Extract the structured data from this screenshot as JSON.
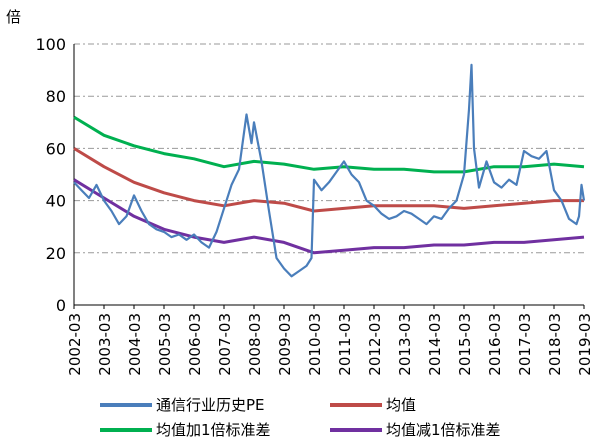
{
  "chart_data": {
    "type": "line",
    "unit_label": "倍",
    "x_tick_labels": [
      "2002-03",
      "2003-03",
      "2004-03",
      "2005-03",
      "2006-03",
      "2007-03",
      "2008-03",
      "2009-03",
      "2010-03",
      "2011-03",
      "2012-03",
      "2013-03",
      "2014-03",
      "2015-03",
      "2016-03",
      "2017-03",
      "2018-03",
      "2019-03"
    ],
    "xlim": [
      "2002-03",
      "2019-03"
    ],
    "ylim": [
      0,
      100
    ],
    "y_ticks": [
      "0",
      "20",
      "40",
      "60",
      "80",
      "100"
    ],
    "grid": "horizontal dash-dot",
    "legend_placement": "bottom",
    "series": [
      {
        "name": "通信行业历史PE",
        "color": "#4a7ebb",
        "points": [
          [
            "2002-03",
            47
          ],
          [
            "2002-06",
            44
          ],
          [
            "2002-09",
            41
          ],
          [
            "2002-12",
            46
          ],
          [
            "2003-03",
            40
          ],
          [
            "2003-06",
            36
          ],
          [
            "2003-09",
            31
          ],
          [
            "2003-12",
            34
          ],
          [
            "2004-03",
            42
          ],
          [
            "2004-06",
            36
          ],
          [
            "2004-09",
            31
          ],
          [
            "2004-12",
            29
          ],
          [
            "2005-03",
            28
          ],
          [
            "2005-06",
            26
          ],
          [
            "2005-09",
            27
          ],
          [
            "2005-12",
            25
          ],
          [
            "2006-03",
            27
          ],
          [
            "2006-06",
            24
          ],
          [
            "2006-09",
            22
          ],
          [
            "2006-12",
            28
          ],
          [
            "2007-03",
            37
          ],
          [
            "2007-06",
            46
          ],
          [
            "2007-09",
            52
          ],
          [
            "2007-12",
            73
          ],
          [
            "2008-02",
            62
          ],
          [
            "2008-03",
            70
          ],
          [
            "2008-06",
            55
          ],
          [
            "2008-09",
            36
          ],
          [
            "2008-12",
            18
          ],
          [
            "2009-03",
            14
          ],
          [
            "2009-06",
            11
          ],
          [
            "2009-09",
            13
          ],
          [
            "2009-12",
            15
          ],
          [
            "2010-02",
            18
          ],
          [
            "2010-03",
            48
          ],
          [
            "2010-06",
            44
          ],
          [
            "2010-09",
            47
          ],
          [
            "2010-12",
            51
          ],
          [
            "2011-03",
            55
          ],
          [
            "2011-06",
            50
          ],
          [
            "2011-09",
            47
          ],
          [
            "2011-12",
            40
          ],
          [
            "2012-03",
            38
          ],
          [
            "2012-06",
            35
          ],
          [
            "2012-09",
            33
          ],
          [
            "2012-12",
            34
          ],
          [
            "2013-03",
            36
          ],
          [
            "2013-06",
            35
          ],
          [
            "2013-09",
            33
          ],
          [
            "2013-12",
            31
          ],
          [
            "2014-03",
            34
          ],
          [
            "2014-06",
            33
          ],
          [
            "2014-09",
            37
          ],
          [
            "2014-12",
            40
          ],
          [
            "2015-03",
            50
          ],
          [
            "2015-05",
            75
          ],
          [
            "2015-06",
            92
          ],
          [
            "2015-07",
            60
          ],
          [
            "2015-09",
            45
          ],
          [
            "2015-12",
            55
          ],
          [
            "2016-03",
            47
          ],
          [
            "2016-06",
            45
          ],
          [
            "2016-09",
            48
          ],
          [
            "2016-12",
            46
          ],
          [
            "2017-03",
            59
          ],
          [
            "2017-06",
            57
          ],
          [
            "2017-09",
            56
          ],
          [
            "2017-12",
            59
          ],
          [
            "2018-03",
            44
          ],
          [
            "2018-06",
            40
          ],
          [
            "2018-09",
            33
          ],
          [
            "2018-12",
            31
          ],
          [
            "2019-01",
            34
          ],
          [
            "2019-02",
            46
          ],
          [
            "2019-03",
            40
          ]
        ]
      },
      {
        "name": "均值",
        "color": "#be4b48",
        "points": [
          [
            "2002-03",
            60
          ],
          [
            "2003-03",
            53
          ],
          [
            "2004-03",
            47
          ],
          [
            "2005-03",
            43
          ],
          [
            "2006-03",
            40
          ],
          [
            "2007-03",
            38
          ],
          [
            "2008-03",
            40
          ],
          [
            "2009-03",
            39
          ],
          [
            "2010-03",
            36
          ],
          [
            "2011-03",
            37
          ],
          [
            "2012-03",
            38
          ],
          [
            "2013-03",
            38
          ],
          [
            "2014-03",
            38
          ],
          [
            "2015-03",
            37
          ],
          [
            "2016-03",
            38
          ],
          [
            "2017-03",
            39
          ],
          [
            "2018-03",
            40
          ],
          [
            "2019-03",
            40
          ]
        ]
      },
      {
        "name": "均值加1倍标准差",
        "color": "#00b050",
        "points": [
          [
            "2002-03",
            72
          ],
          [
            "2003-03",
            65
          ],
          [
            "2004-03",
            61
          ],
          [
            "2005-03",
            58
          ],
          [
            "2006-03",
            56
          ],
          [
            "2007-03",
            53
          ],
          [
            "2008-03",
            55
          ],
          [
            "2009-03",
            54
          ],
          [
            "2010-03",
            52
          ],
          [
            "2011-03",
            53
          ],
          [
            "2012-03",
            52
          ],
          [
            "2013-03",
            52
          ],
          [
            "2014-03",
            51
          ],
          [
            "2015-03",
            51
          ],
          [
            "2016-03",
            53
          ],
          [
            "2017-03",
            53
          ],
          [
            "2018-03",
            54
          ],
          [
            "2019-03",
            53
          ]
        ]
      },
      {
        "name": "均值减1倍标准差",
        "color": "#7030a0",
        "points": [
          [
            "2002-03",
            48
          ],
          [
            "2003-03",
            41
          ],
          [
            "2004-03",
            34
          ],
          [
            "2005-03",
            29
          ],
          [
            "2006-03",
            26
          ],
          [
            "2007-03",
            24
          ],
          [
            "2008-03",
            26
          ],
          [
            "2009-03",
            24
          ],
          [
            "2010-03",
            20
          ],
          [
            "2011-03",
            21
          ],
          [
            "2012-03",
            22
          ],
          [
            "2013-03",
            22
          ],
          [
            "2014-03",
            23
          ],
          [
            "2015-03",
            23
          ],
          [
            "2016-03",
            24
          ],
          [
            "2017-03",
            24
          ],
          [
            "2018-03",
            25
          ],
          [
            "2019-03",
            26
          ]
        ]
      }
    ]
  }
}
